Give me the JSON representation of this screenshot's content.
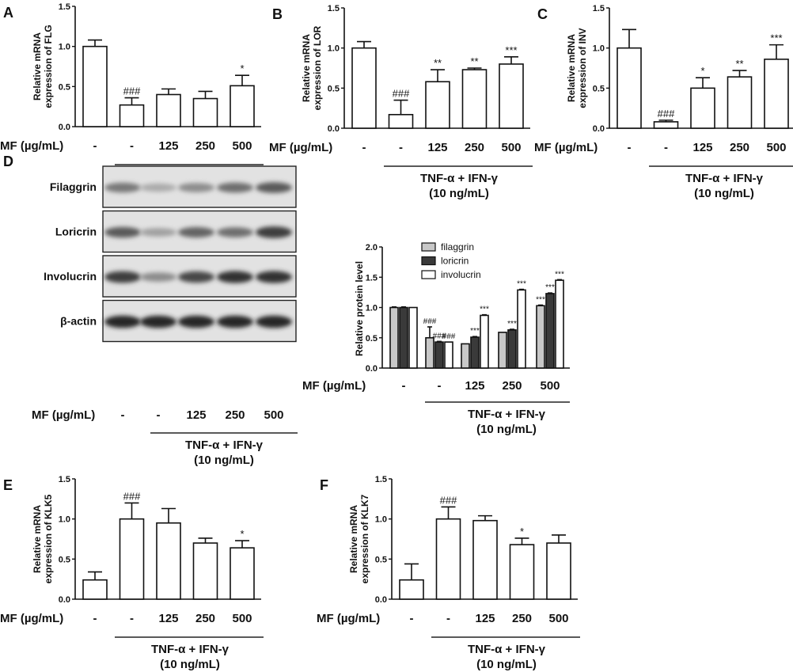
{
  "common": {
    "mf_label": "MF (µg/mL)",
    "doses": [
      "-",
      "-",
      "125",
      "250",
      "500"
    ],
    "treatment": "TNF-α + IFN-γ",
    "treatment_conc": "(10 ng/mL)"
  },
  "chart_data": [
    {
      "panel": "A",
      "type": "bar",
      "ylabel": [
        "Relative mRNA",
        "expression of FLG"
      ],
      "ylim": [
        0,
        1.5
      ],
      "yticks": [
        "0.0",
        "0.5",
        "1.0",
        "1.5"
      ],
      "categories": [
        "-",
        "-",
        "125",
        "250",
        "500"
      ],
      "values": [
        1.0,
        0.27,
        0.4,
        0.35,
        0.51
      ],
      "errors": [
        0.08,
        0.09,
        0.07,
        0.09,
        0.13
      ],
      "annotations": [
        "",
        "###",
        "",
        "",
        "*"
      ]
    },
    {
      "panel": "B",
      "type": "bar",
      "ylabel": [
        "Relative mRNA",
        "expression of LOR"
      ],
      "ylim": [
        0,
        1.5
      ],
      "yticks": [
        "0.0",
        "0.5",
        "1.0",
        "1.5"
      ],
      "categories": [
        "-",
        "-",
        "125",
        "250",
        "500"
      ],
      "values": [
        1.0,
        0.17,
        0.58,
        0.73,
        0.8
      ],
      "errors": [
        0.08,
        0.18,
        0.15,
        0.02,
        0.09
      ],
      "annotations": [
        "",
        "###",
        "**",
        "**",
        "***"
      ]
    },
    {
      "panel": "C",
      "type": "bar",
      "ylabel": [
        "Relative mRNA",
        "expression of INV"
      ],
      "ylim": [
        0,
        1.5
      ],
      "yticks": [
        "0.0",
        "0.5",
        "1.0",
        "1.5"
      ],
      "categories": [
        "-",
        "-",
        "125",
        "250",
        "500"
      ],
      "values": [
        1.0,
        0.08,
        0.5,
        0.64,
        0.86
      ],
      "errors": [
        0.23,
        0.02,
        0.13,
        0.08,
        0.18
      ],
      "annotations": [
        "",
        "###",
        "*",
        "**",
        "***"
      ]
    },
    {
      "panel": "D",
      "type": "bar",
      "ylabel": [
        "Relative protein level"
      ],
      "ylim": [
        0,
        2.0
      ],
      "yticks": [
        "0.0",
        "0.5",
        "1.0",
        "1.5",
        "2.0"
      ],
      "categories": [
        "-",
        "-",
        "125",
        "250",
        "500"
      ],
      "series": [
        {
          "name": "filaggrin",
          "color": "#c8c8c8",
          "values": [
            1.0,
            0.5,
            0.4,
            0.59,
            1.03
          ],
          "errors": [
            0.01,
            0.18,
            0.0,
            0.0,
            0.01
          ],
          "annotations": [
            "",
            "###",
            "",
            "",
            "***"
          ]
        },
        {
          "name": "loricrin",
          "color": "#3a3a3a",
          "values": [
            1.0,
            0.43,
            0.51,
            0.63,
            1.23
          ],
          "errors": [
            0.01,
            0.01,
            0.01,
            0.01,
            0.01
          ],
          "annotations": [
            "",
            "###",
            "***",
            "***",
            "***"
          ]
        },
        {
          "name": "involucrin",
          "color": "#ffffff",
          "values": [
            1.0,
            0.43,
            0.87,
            1.29,
            1.45
          ],
          "errors": [
            0.0,
            0.0,
            0.01,
            0.01,
            0.01
          ],
          "annotations": [
            "",
            "###",
            "***",
            "***",
            "***"
          ]
        }
      ],
      "legend": "top-left"
    },
    {
      "panel": "E",
      "type": "bar",
      "ylabel": [
        "Relative mRNA",
        "expression of KLK5"
      ],
      "ylim": [
        0,
        1.5
      ],
      "yticks": [
        "0.0",
        "0.5",
        "1.0",
        "1.5"
      ],
      "categories": [
        "-",
        "-",
        "125",
        "250",
        "500"
      ],
      "values": [
        0.24,
        1.0,
        0.95,
        0.7,
        0.64
      ],
      "errors": [
        0.1,
        0.2,
        0.18,
        0.06,
        0.09
      ],
      "annotations": [
        "",
        "###",
        "",
        "",
        "*"
      ]
    },
    {
      "panel": "F",
      "type": "bar",
      "ylabel": [
        "Relative mRNA",
        "expression of KLK7"
      ],
      "ylim": [
        0,
        1.5
      ],
      "yticks": [
        "0.0",
        "0.5",
        "1.0",
        "1.5"
      ],
      "categories": [
        "-",
        "-",
        "125",
        "250",
        "500"
      ],
      "values": [
        0.24,
        1.0,
        0.98,
        0.68,
        0.7
      ],
      "errors": [
        0.2,
        0.15,
        0.06,
        0.08,
        0.1
      ],
      "annotations": [
        "",
        "###",
        "",
        "*",
        ""
      ]
    }
  ],
  "western_blot": {
    "panel": "D",
    "rows": [
      {
        "label": "Filaggrin",
        "intensity": [
          0.55,
          0.3,
          0.45,
          0.6,
          0.7
        ]
      },
      {
        "label": "Loricrin",
        "intensity": [
          0.7,
          0.35,
          0.65,
          0.6,
          0.85
        ]
      },
      {
        "label": "Involucrin",
        "intensity": [
          0.85,
          0.45,
          0.8,
          0.9,
          0.9
        ]
      },
      {
        "label": "β-actin",
        "intensity": [
          0.95,
          0.95,
          0.95,
          0.95,
          0.95
        ]
      }
    ]
  }
}
